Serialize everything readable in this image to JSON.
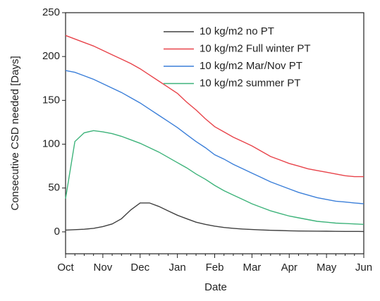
{
  "chart_data": {
    "type": "line",
    "xlabel": "Date",
    "ylabel": "Consecutive CSD needed [Days]",
    "categories": [
      "Oct",
      null,
      null,
      null,
      "Nov",
      null,
      null,
      null,
      "Dec",
      null,
      null,
      null,
      "Jan",
      null,
      null,
      null,
      "Feb",
      null,
      null,
      null,
      "Mar",
      null,
      null,
      null,
      "Apr",
      null,
      null,
      null,
      "May",
      null,
      null,
      null,
      "Jun"
    ],
    "series": [
      {
        "name": "10 kg/m2 no PT",
        "color": "#404040",
        "values": [
          2,
          2.5,
          3,
          4,
          6,
          9,
          15,
          25,
          33,
          33,
          29,
          24,
          19,
          15,
          11,
          8.5,
          6.5,
          5,
          4,
          3.2,
          2.7,
          2.2,
          1.8,
          1.5,
          1.2,
          1,
          0.9,
          0.8,
          0.7,
          0.6,
          0.5,
          0.5,
          0.4
        ]
      },
      {
        "name": "10 kg/m2 Full winter PT",
        "color": "#e8434a",
        "values": [
          224,
          220,
          216,
          212,
          207,
          202,
          197,
          192,
          186,
          179,
          172,
          165,
          158,
          148,
          139,
          129,
          120,
          114,
          108,
          103,
          98,
          92,
          86,
          82,
          78,
          75,
          72,
          70,
          68,
          66,
          64,
          63,
          63
        ]
      },
      {
        "name": "10 kg/m2 Mar/Nov PT",
        "color": "#3b7fd9",
        "values": [
          184,
          182,
          178,
          174,
          169,
          164,
          159,
          153,
          147,
          140,
          133,
          126,
          119,
          111,
          103,
          96,
          88,
          83,
          77,
          72,
          67,
          62,
          57,
          53,
          49,
          45,
          42,
          39,
          37,
          35,
          34,
          33,
          32
        ]
      },
      {
        "name": "10 kg/m2 summer PT",
        "color": "#3db37a",
        "values": [
          38,
          103,
          113,
          115.5,
          114,
          112,
          109,
          105,
          101,
          96,
          91,
          85,
          79,
          73,
          66,
          60,
          53,
          47,
          42,
          37,
          32,
          28,
          24,
          21,
          18,
          16,
          14,
          12,
          11,
          10,
          9.5,
          9,
          8.5
        ]
      }
    ],
    "ylim": [
      -25,
      250
    ],
    "yticks": [
      0,
      50,
      100,
      150,
      200,
      250
    ],
    "legend": "upper right"
  }
}
